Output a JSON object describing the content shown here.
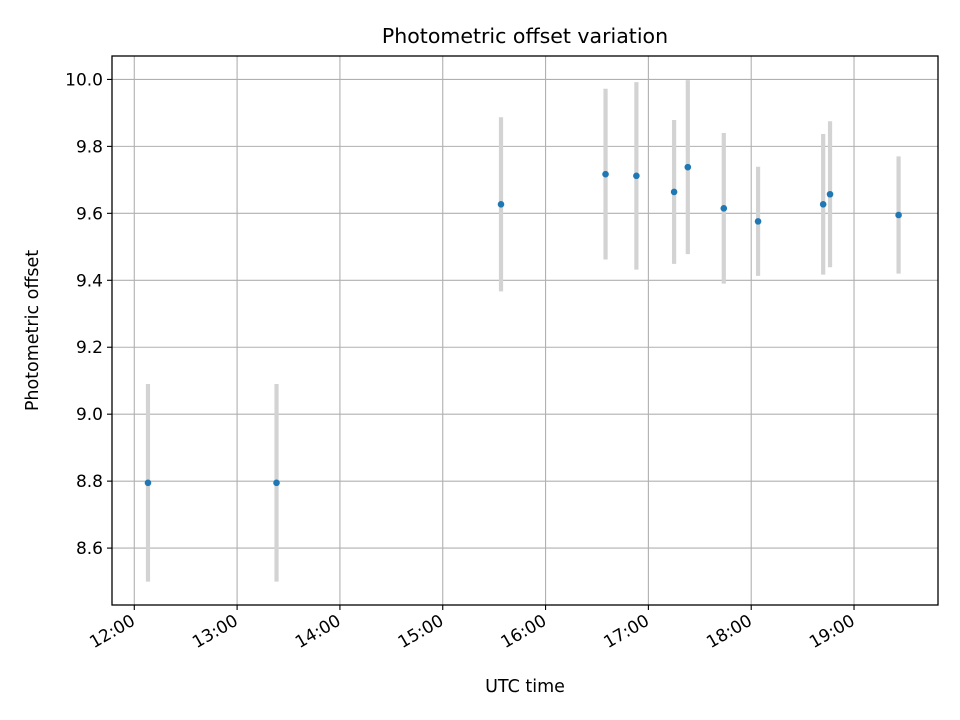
{
  "chart_data": {
    "type": "scatter",
    "title": "Photometric offset variation",
    "xlabel": "UTC time",
    "ylabel": "Photometric offset",
    "x_ticks": [
      "12:00",
      "13:00",
      "14:00",
      "15:00",
      "16:00",
      "17:00",
      "18:00",
      "19:00"
    ],
    "x_tick_hours": [
      12,
      13,
      14,
      15,
      16,
      17,
      18,
      19
    ],
    "y_ticks": [
      "8.6",
      "8.8",
      "9.0",
      "9.2",
      "9.4",
      "9.6",
      "9.8",
      "10.0"
    ],
    "y_tick_values": [
      8.6,
      8.8,
      9.0,
      9.2,
      9.4,
      9.6,
      9.8,
      10.0
    ],
    "xlim": [
      "11:47",
      "19:49"
    ],
    "ylim": [
      8.43,
      10.07
    ],
    "grid": true,
    "marker_color": "#1f77b4",
    "errorbar_color": "#d3d3d3",
    "points": [
      {
        "time": "12:08",
        "y": 8.795,
        "err": 0.295
      },
      {
        "time": "13:23",
        "y": 8.795,
        "err": 0.295
      },
      {
        "time": "15:34",
        "y": 9.627,
        "err": 0.26
      },
      {
        "time": "16:35",
        "y": 9.717,
        "err": 0.255
      },
      {
        "time": "16:53",
        "y": 9.712,
        "err": 0.28
      },
      {
        "time": "17:15",
        "y": 9.664,
        "err": 0.215
      },
      {
        "time": "17:23",
        "y": 9.738,
        "err": 0.26
      },
      {
        "time": "17:44",
        "y": 9.615,
        "err": 0.225
      },
      {
        "time": "18:04",
        "y": 9.576,
        "err": 0.163
      },
      {
        "time": "18:42",
        "y": 9.627,
        "err": 0.21
      },
      {
        "time": "18:46",
        "y": 9.657,
        "err": 0.218
      },
      {
        "time": "19:26",
        "y": 9.595,
        "err": 0.175
      }
    ]
  }
}
